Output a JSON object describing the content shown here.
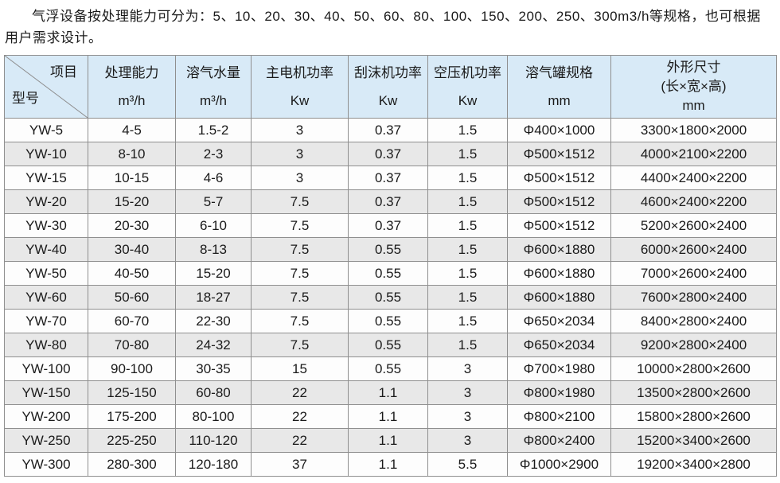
{
  "intro": "气浮设备按处理能力可分为：5、10、20、30、40、50、60、80、100、150、200、250、300m3/h等规格，也可根据用户需求设计。",
  "table": {
    "corner": {
      "top_right": "项目",
      "bottom_left": "型号"
    },
    "columns": [
      {
        "title": "处理能力",
        "unit": "m³/h"
      },
      {
        "title": "溶气水量",
        "unit": "m³/h"
      },
      {
        "title": "主电机功率",
        "unit": "Kw"
      },
      {
        "title": "刮沫机功率",
        "unit": "Kw"
      },
      {
        "title": "空压机功率",
        "unit": "Kw"
      },
      {
        "title": "溶气罐规格",
        "unit": "mm"
      },
      {
        "title": "外形尺寸",
        "unit2": "(长×宽×高)",
        "unit": "mm"
      }
    ],
    "rows": [
      [
        "YW-5",
        "4-5",
        "1.5-2",
        "3",
        "0.37",
        "1.5",
        "Φ400×1000",
        "3300×1800×2000"
      ],
      [
        "YW-10",
        "8-10",
        "2-3",
        "3",
        "0.37",
        "1.5",
        "Φ500×1512",
        "4000×2100×2200"
      ],
      [
        "YW-15",
        "10-15",
        "4-6",
        "3",
        "0.37",
        "1.5",
        "Φ500×1512",
        "4400×2400×2200"
      ],
      [
        "YW-20",
        "15-20",
        "5-7",
        "7.5",
        "0.37",
        "1.5",
        "Φ500×1512",
        "4600×2400×2200"
      ],
      [
        "YW-30",
        "20-30",
        "6-10",
        "7.5",
        "0.37",
        "1.5",
        "Φ500×1512",
        "5200×2600×2400"
      ],
      [
        "YW-40",
        "30-40",
        "8-13",
        "7.5",
        "0.55",
        "1.5",
        "Φ600×1880",
        "6000×2600×2400"
      ],
      [
        "YW-50",
        "40-50",
        "15-20",
        "7.5",
        "0.55",
        "1.5",
        "Φ600×1880",
        "7000×2600×2400"
      ],
      [
        "YW-60",
        "50-60",
        "18-27",
        "7.5",
        "0.55",
        "1.5",
        "Φ600×1880",
        "7600×2800×2400"
      ],
      [
        "YW-70",
        "60-70",
        "22-30",
        "7.5",
        "0.55",
        "1.5",
        "Φ650×2034",
        "8400×2800×2400"
      ],
      [
        "YW-80",
        "70-80",
        "24-32",
        "7.5",
        "0.55",
        "1.5",
        "Φ650×2034",
        "9200×2800×2400"
      ],
      [
        "YW-100",
        "90-100",
        "30-35",
        "15",
        "0.55",
        "3",
        "Φ700×1980",
        "10000×2800×2600"
      ],
      [
        "YW-150",
        "125-150",
        "60-80",
        "22",
        "1.1",
        "3",
        "Φ800×1980",
        "13500×2800×2600"
      ],
      [
        "YW-200",
        "175-200",
        "80-100",
        "22",
        "1.1",
        "3",
        "Φ800×2100",
        "15800×2800×2600"
      ],
      [
        "YW-250",
        "225-250",
        "110-120",
        "22",
        "1.1",
        "3",
        "Φ800×2400",
        "15200×3400×2600"
      ],
      [
        "YW-300",
        "280-300",
        "120-180",
        "37",
        "1.1",
        "5.5",
        "Φ1000×2900",
        "19200×3400×2800"
      ]
    ],
    "colors": {
      "header_bg": "#d8eaf7",
      "stripe_bg": "#e8e8e8",
      "row_bg": "#fdfdfd",
      "border": "#8f8f8f",
      "text": "#1a1a1a"
    }
  }
}
